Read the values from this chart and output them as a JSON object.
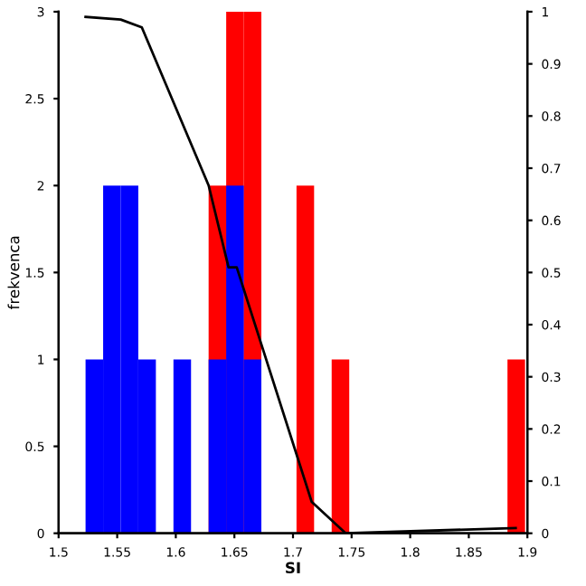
{
  "chart_data": {
    "type": "histogram",
    "xlabel": "SI",
    "ylabel": "frekvenca",
    "bins": [
      1.523,
      1.538,
      1.553,
      1.568,
      1.583,
      1.598,
      1.613,
      1.628,
      1.643,
      1.658,
      1.673,
      1.688,
      1.703,
      1.718,
      1.733,
      1.748,
      1.763,
      1.778,
      1.793,
      1.808,
      1.823,
      1.838,
      1.853,
      1.868,
      1.883,
      1.898
    ],
    "series": [
      {
        "color": "#ff0000",
        "values": [
          0,
          0,
          0,
          0,
          0,
          0,
          0,
          2,
          3,
          3,
          0,
          0,
          2,
          0,
          1,
          0,
          0,
          0,
          0,
          0,
          0,
          0,
          0,
          0,
          1
        ]
      },
      {
        "color": "#0000ff",
        "values": [
          1,
          2,
          2,
          1,
          0,
          1,
          0,
          1,
          2,
          1,
          0,
          0,
          0,
          0,
          0,
          0,
          0,
          0,
          0,
          0,
          0,
          0,
          0,
          0,
          0
        ]
      },
      {
        "type": "line",
        "axis": "y2",
        "color": "#000000",
        "x": [
          1.523,
          1.553,
          1.571,
          1.628,
          1.645,
          1.652,
          1.716,
          1.745,
          1.89
        ],
        "values": [
          0.99,
          0.985,
          0.97,
          0.667,
          0.51,
          0.51,
          0.06,
          0.0,
          0.01
        ]
      }
    ],
    "xlim": [
      1.5,
      1.9
    ],
    "xticks": [
      1.5,
      1.55,
      1.6,
      1.65,
      1.7,
      1.75,
      1.8,
      1.85,
      1.9
    ],
    "ylim": [
      0,
      3
    ],
    "yticks": [
      0,
      0.5,
      1,
      1.5,
      2,
      2.5,
      3
    ],
    "y2lim": [
      0,
      1
    ],
    "y2ticks": [
      0,
      0.1,
      0.2,
      0.3,
      0.4,
      0.5,
      0.6,
      0.7,
      0.8,
      0.9,
      1
    ],
    "grid": false,
    "legend": false
  }
}
